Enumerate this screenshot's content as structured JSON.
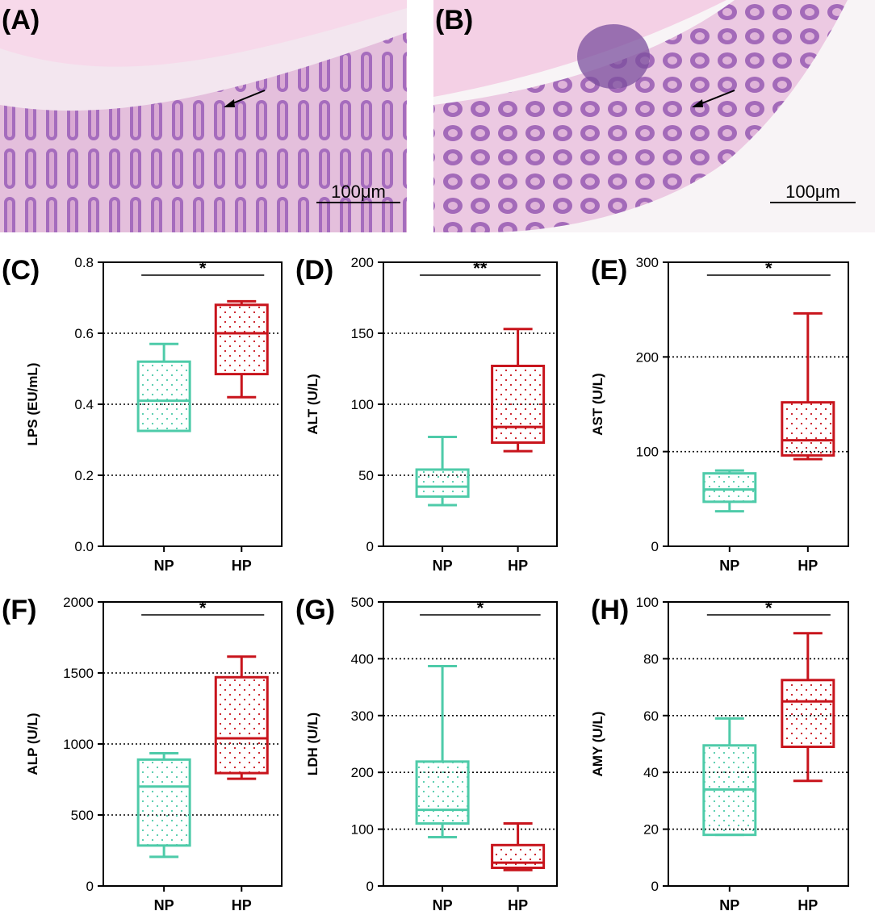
{
  "colors": {
    "np": "#4ecba9",
    "hp": "#c8141c",
    "tissue_pink": "#e8b6d4",
    "tissue_purple": "#9a5fb0",
    "axis": "#000000"
  },
  "micrographs": [
    {
      "label": "(A)",
      "scale_bar": "100μm",
      "arrow": "arrow-icon"
    },
    {
      "label": "(B)",
      "scale_bar": "100μm",
      "arrow": "arrow-icon"
    }
  ],
  "chart_data": [
    {
      "type": "boxplot",
      "panel": "(C)",
      "ylabel": "LPS (EU/mL)",
      "ylim": [
        0,
        0.8
      ],
      "yticks": [
        "0.0",
        "0.2",
        "0.4",
        "0.6",
        "0.8"
      ],
      "grid": [
        0.2,
        0.4,
        0.6
      ],
      "categories": [
        "NP",
        "HP"
      ],
      "significance": "*",
      "series": [
        {
          "name": "NP",
          "min": 0.325,
          "q1": 0.325,
          "median": 0.41,
          "q3": 0.52,
          "max": 0.57
        },
        {
          "name": "HP",
          "min": 0.42,
          "q1": 0.485,
          "median": 0.6,
          "q3": 0.68,
          "max": 0.69
        }
      ]
    },
    {
      "type": "boxplot",
      "panel": "(D)",
      "ylabel": "ALT (U/L)",
      "ylim": [
        0,
        200
      ],
      "yticks": [
        "0",
        "50",
        "100",
        "150",
        "200"
      ],
      "grid": [
        50,
        100,
        150
      ],
      "categories": [
        "NP",
        "HP"
      ],
      "significance": "**",
      "series": [
        {
          "name": "NP",
          "min": 29,
          "q1": 35,
          "median": 42,
          "q3": 54,
          "max": 77
        },
        {
          "name": "HP",
          "min": 67,
          "q1": 73,
          "median": 84,
          "q3": 127,
          "max": 153
        }
      ]
    },
    {
      "type": "boxplot",
      "panel": "(E)",
      "ylabel": "AST (U/L)",
      "ylim": [
        0,
        300
      ],
      "yticks": [
        "0",
        "100",
        "200",
        "300"
      ],
      "grid": [
        100,
        200
      ],
      "categories": [
        "NP",
        "HP"
      ],
      "significance": "*",
      "series": [
        {
          "name": "NP",
          "min": 37,
          "q1": 47,
          "median": 60,
          "q3": 77,
          "max": 80
        },
        {
          "name": "HP",
          "min": 92,
          "q1": 96,
          "median": 112,
          "q3": 152,
          "max": 246
        }
      ]
    },
    {
      "type": "boxplot",
      "panel": "(F)",
      "ylabel": "ALP (U/L)",
      "ylim": [
        0,
        2000
      ],
      "yticks": [
        "0",
        "500",
        "1000",
        "1500",
        "2000"
      ],
      "grid": [
        500,
        1000,
        1500
      ],
      "categories": [
        "NP",
        "HP"
      ],
      "significance": "*",
      "series": [
        {
          "name": "NP",
          "min": 205,
          "q1": 285,
          "median": 700,
          "q3": 890,
          "max": 935
        },
        {
          "name": "HP",
          "min": 755,
          "q1": 795,
          "median": 1040,
          "q3": 1470,
          "max": 1615
        }
      ]
    },
    {
      "type": "boxplot",
      "panel": "(G)",
      "ylabel": "LDH (U/L)",
      "ylim": [
        0,
        500
      ],
      "yticks": [
        "0",
        "100",
        "200",
        "300",
        "400",
        "500"
      ],
      "grid": [
        100,
        200,
        300,
        400
      ],
      "categories": [
        "NP",
        "HP"
      ],
      "significance": "*",
      "series": [
        {
          "name": "NP",
          "min": 86,
          "q1": 110,
          "median": 134,
          "q3": 219,
          "max": 387
        },
        {
          "name": "HP",
          "min": 28,
          "q1": 32,
          "median": 41,
          "q3": 72,
          "max": 110
        }
      ]
    },
    {
      "type": "boxplot",
      "panel": "(H)",
      "ylabel": "AMY (U/L)",
      "ylim": [
        0,
        100
      ],
      "yticks": [
        "0",
        "20",
        "40",
        "60",
        "80",
        "100"
      ],
      "grid": [
        20,
        40,
        60,
        80
      ],
      "categories": [
        "NP",
        "HP"
      ],
      "significance": "*",
      "series": [
        {
          "name": "NP",
          "min": 18,
          "q1": 18,
          "median": 34,
          "q3": 49.5,
          "max": 59
        },
        {
          "name": "HP",
          "min": 37,
          "q1": 49,
          "median": 65,
          "q3": 72.5,
          "max": 89
        }
      ]
    }
  ]
}
